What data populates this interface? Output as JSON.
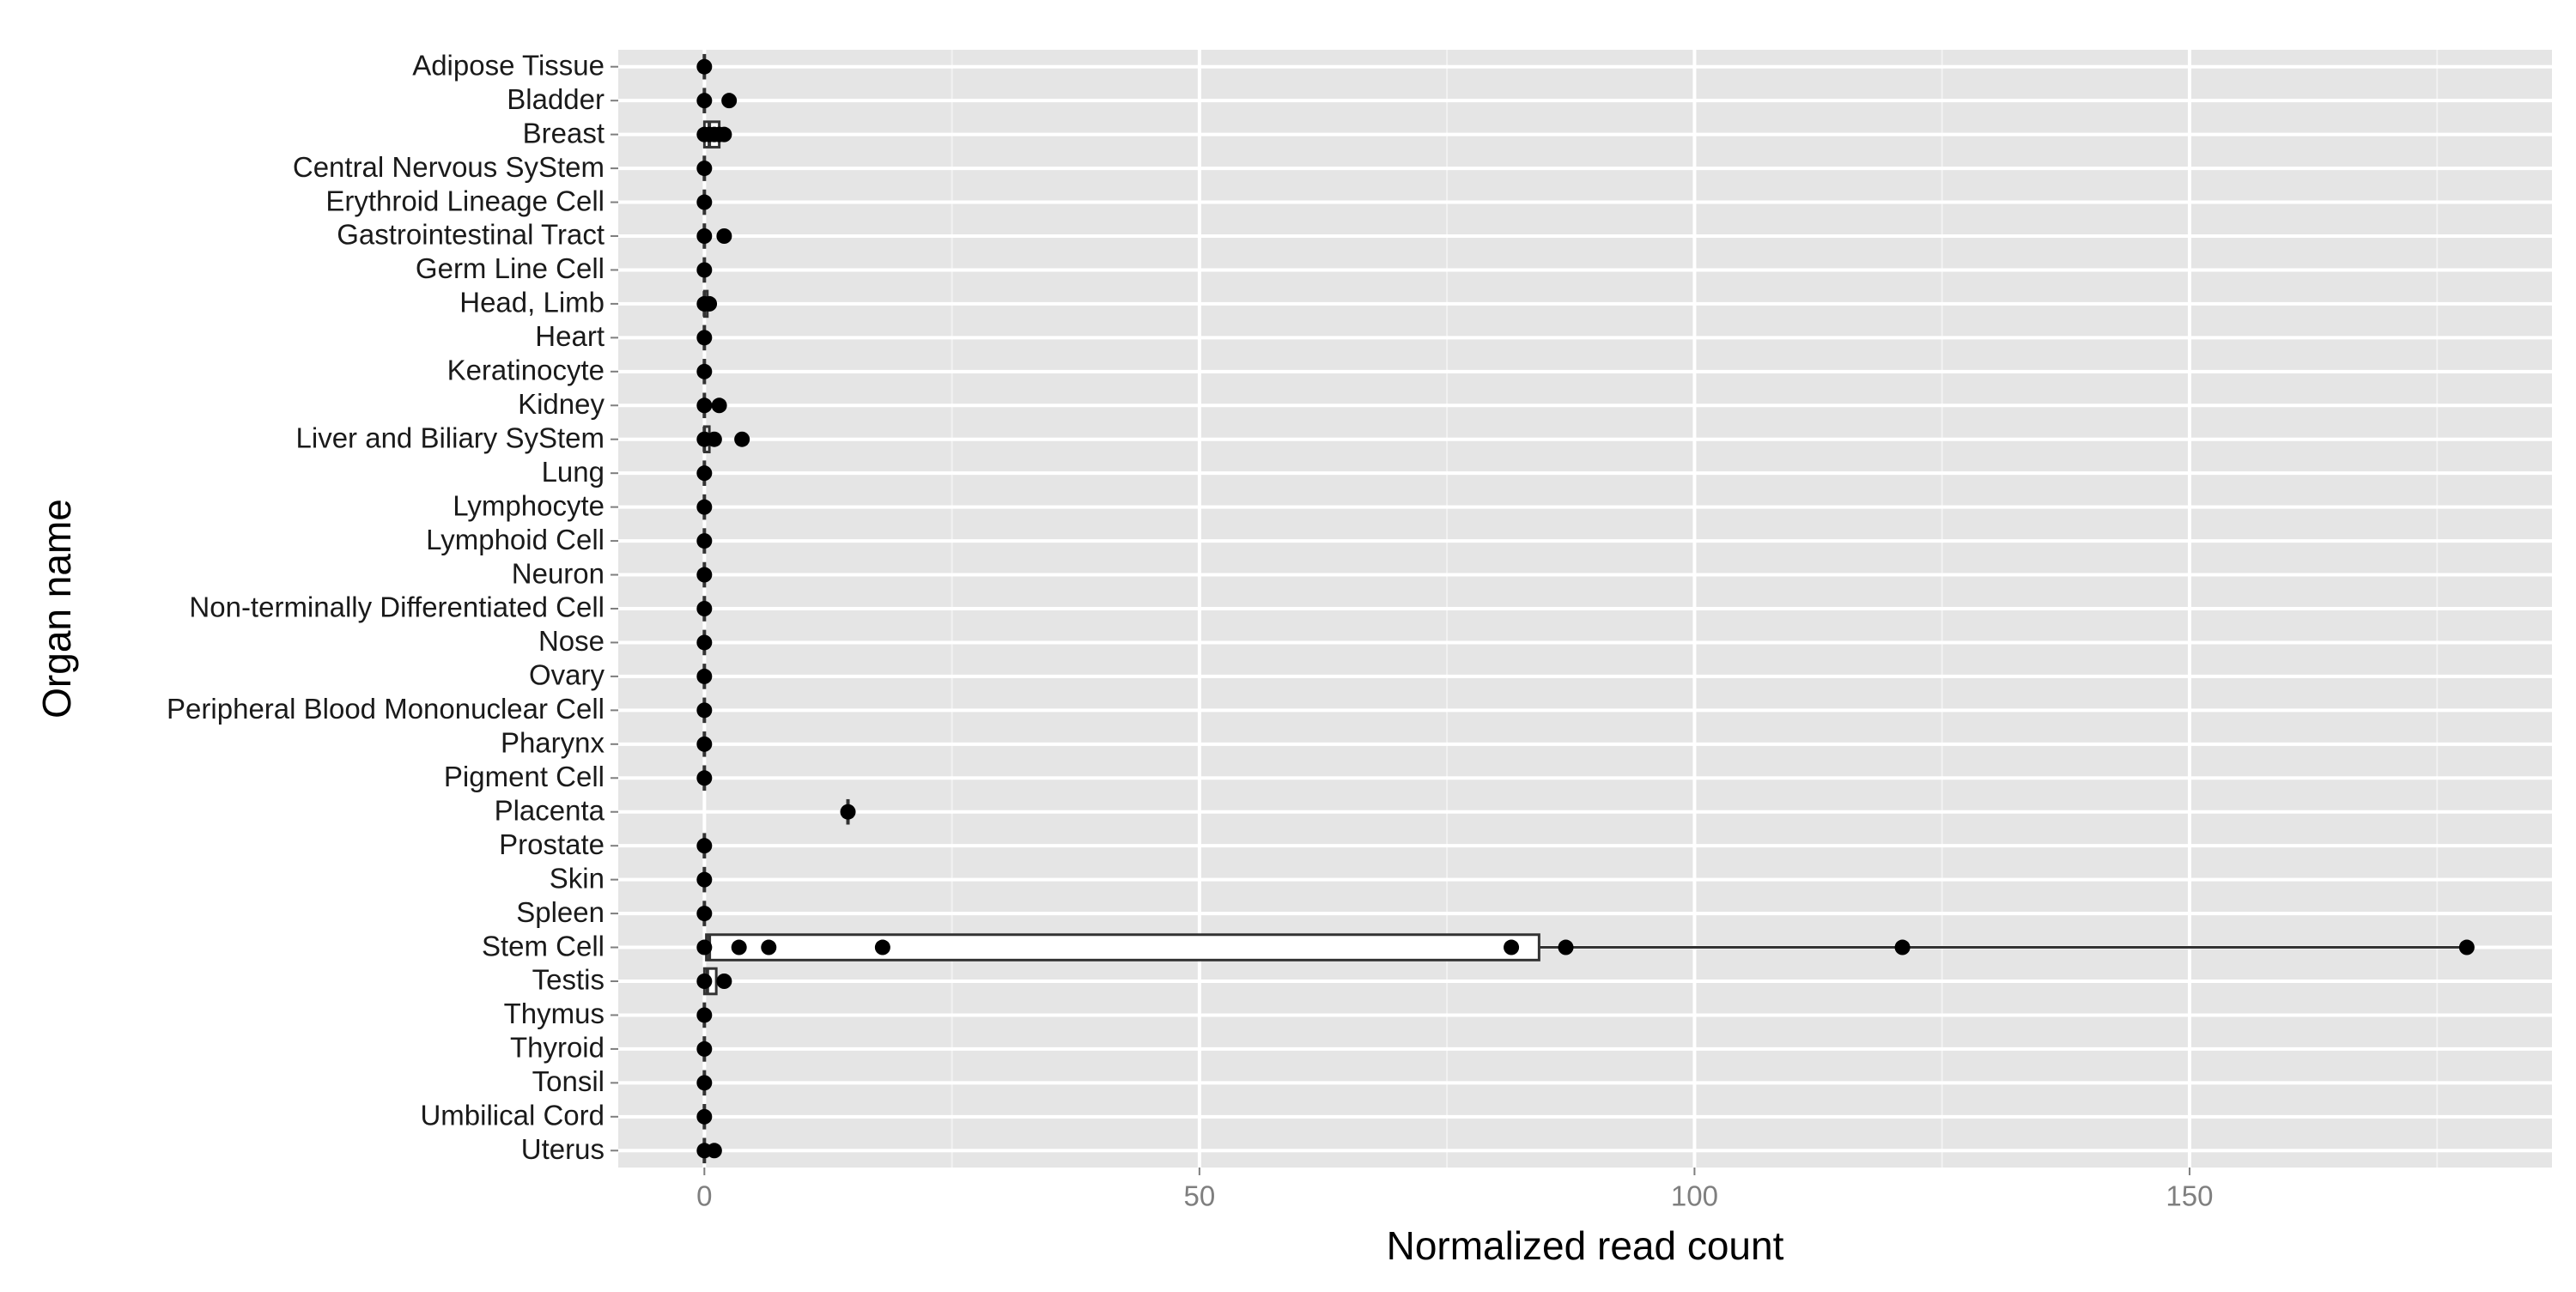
{
  "chart_data": {
    "type": "box",
    "x_label": "Normalized read count",
    "y_label": "Organ name",
    "categories": [
      "Adipose Tissue",
      "Bladder",
      "Breast",
      "Central Nervous SyStem",
      "Erythroid Lineage Cell",
      "Gastrointestinal Tract",
      "Germ Line Cell",
      "Head, Limb",
      "Heart",
      "Keratinocyte",
      "Kidney",
      "Liver and Biliary SyStem",
      "Lung",
      "Lymphocyte",
      "Lymphoid Cell",
      "Neuron",
      "Non-terminally Differentiated Cell",
      "Nose",
      "Ovary",
      "Peripheral Blood Mononuclear Cell",
      "Pharynx",
      "Pigment Cell",
      "Placenta",
      "Prostate",
      "Skin",
      "Spleen",
      "Stem Cell",
      "Testis",
      "Thymus",
      "Thyroid",
      "Tonsil",
      "Umbilical Cord",
      "Uterus"
    ],
    "boxes": [
      {
        "min": 0,
        "q1": 0,
        "median": 0,
        "q3": 0,
        "max": 0
      },
      {
        "min": 0,
        "q1": 0,
        "median": 0,
        "q3": 0,
        "max": 0
      },
      {
        "min": 0,
        "q1": 0,
        "median": 0.5,
        "q3": 1.5,
        "max": 2
      },
      {
        "min": 0,
        "q1": 0,
        "median": 0,
        "q3": 0,
        "max": 0
      },
      {
        "min": 0,
        "q1": 0,
        "median": 0,
        "q3": 0,
        "max": 0
      },
      {
        "min": 0,
        "q1": 0,
        "median": 0,
        "q3": 0,
        "max": 0
      },
      {
        "min": 0,
        "q1": 0,
        "median": 0,
        "q3": 0,
        "max": 0
      },
      {
        "min": 0,
        "q1": 0,
        "median": 0,
        "q3": 0.3,
        "max": 0.5
      },
      {
        "min": 0,
        "q1": 0,
        "median": 0,
        "q3": 0,
        "max": 0
      },
      {
        "min": 0,
        "q1": 0,
        "median": 0,
        "q3": 0,
        "max": 0
      },
      {
        "min": 0,
        "q1": 0,
        "median": 0,
        "q3": 0,
        "max": 0
      },
      {
        "min": 0,
        "q1": 0,
        "median": 0,
        "q3": 0.5,
        "max": 1
      },
      {
        "min": 0,
        "q1": 0,
        "median": 0,
        "q3": 0,
        "max": 0
      },
      {
        "min": 0,
        "q1": 0,
        "median": 0,
        "q3": 0,
        "max": 0
      },
      {
        "min": 0,
        "q1": 0,
        "median": 0,
        "q3": 0,
        "max": 0
      },
      {
        "min": 0,
        "q1": 0,
        "median": 0,
        "q3": 0,
        "max": 0
      },
      {
        "min": 0,
        "q1": 0,
        "median": 0,
        "q3": 0,
        "max": 0
      },
      {
        "min": 0,
        "q1": 0,
        "median": 0,
        "q3": 0,
        "max": 0
      },
      {
        "min": 0,
        "q1": 0,
        "median": 0,
        "q3": 0,
        "max": 0
      },
      {
        "min": 0,
        "q1": 0,
        "median": 0,
        "q3": 0,
        "max": 0
      },
      {
        "min": 0,
        "q1": 0,
        "median": 0,
        "q3": 0,
        "max": 0
      },
      {
        "min": 0,
        "q1": 0,
        "median": 0,
        "q3": 0,
        "max": 0
      },
      {
        "min": 14.5,
        "q1": 14.5,
        "median": 14.5,
        "q3": 14.5,
        "max": 14.5
      },
      {
        "min": 0,
        "q1": 0,
        "median": 0,
        "q3": 0,
        "max": 0
      },
      {
        "min": 0,
        "q1": 0,
        "median": 0,
        "q3": 0,
        "max": 0
      },
      {
        "min": 0,
        "q1": 0,
        "median": 0,
        "q3": 0,
        "max": 0
      },
      {
        "min": 0,
        "q1": 0.2,
        "median": 0.5,
        "q3": 84.3,
        "max": 178
      },
      {
        "min": 0,
        "q1": 0,
        "median": 0.3,
        "q3": 1.2,
        "max": 2
      },
      {
        "min": 0,
        "q1": 0,
        "median": 0,
        "q3": 0,
        "max": 0
      },
      {
        "min": 0,
        "q1": 0,
        "median": 0,
        "q3": 0,
        "max": 0
      },
      {
        "min": 0,
        "q1": 0,
        "median": 0,
        "q3": 0,
        "max": 0
      },
      {
        "min": 0,
        "q1": 0,
        "median": 0,
        "q3": 0,
        "max": 0
      },
      {
        "min": 0,
        "q1": 0,
        "median": 0,
        "q3": 0,
        "max": 0
      }
    ],
    "points": [
      [
        0
      ],
      [
        0,
        2.5
      ],
      [
        0,
        0.5,
        1,
        1.5,
        2
      ],
      [
        0
      ],
      [
        0
      ],
      [
        0,
        2
      ],
      [
        0
      ],
      [
        0,
        0.5
      ],
      [
        0
      ],
      [
        0
      ],
      [
        0,
        1.5
      ],
      [
        0,
        1,
        3.8
      ],
      [
        0
      ],
      [
        0
      ],
      [
        0
      ],
      [
        0
      ],
      [
        0
      ],
      [
        0
      ],
      [
        0
      ],
      [
        0
      ],
      [
        0
      ],
      [
        0
      ],
      [
        14.5
      ],
      [
        0
      ],
      [
        0
      ],
      [
        0
      ],
      [
        0,
        3.5,
        6.5,
        18,
        81.5,
        87,
        121,
        178
      ],
      [
        0,
        2
      ],
      [
        0
      ],
      [
        0
      ],
      [
        0
      ],
      [
        0
      ],
      [
        0,
        1
      ]
    ],
    "xlim": [
      -8.7,
      186.6
    ],
    "xticks": [
      0,
      50,
      100,
      150
    ],
    "minor_xticks": [
      25,
      75,
      125,
      175
    ],
    "grid": true,
    "color": "#000000"
  }
}
